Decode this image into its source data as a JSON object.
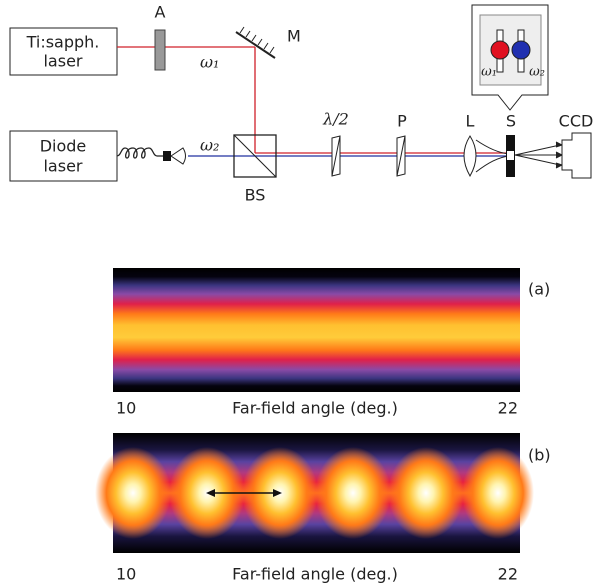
{
  "setup": {
    "ti_laser": [
      "Ti:sapph.",
      "laser"
    ],
    "attenuator": "A",
    "mirror": "M",
    "omega1": "ω₁",
    "diode_laser": [
      "Diode",
      "laser"
    ],
    "omega2": "ω₂",
    "beam_splitter": "BS",
    "waveplate": "λ/2",
    "polarizer": "P",
    "lens": "L",
    "sample": "S",
    "camera": "CCD",
    "inset": {
      "omega1": "ω₁",
      "omega2": "ω₂"
    }
  },
  "images": [
    {
      "label": "(a)",
      "axis_start": "10",
      "axis_title": "Far-field angle (deg.)",
      "axis_end": "22"
    },
    {
      "label": "(b)",
      "axis_start": "10",
      "axis_title": "Far-field angle (deg.)",
      "axis_end": "22"
    }
  ]
}
